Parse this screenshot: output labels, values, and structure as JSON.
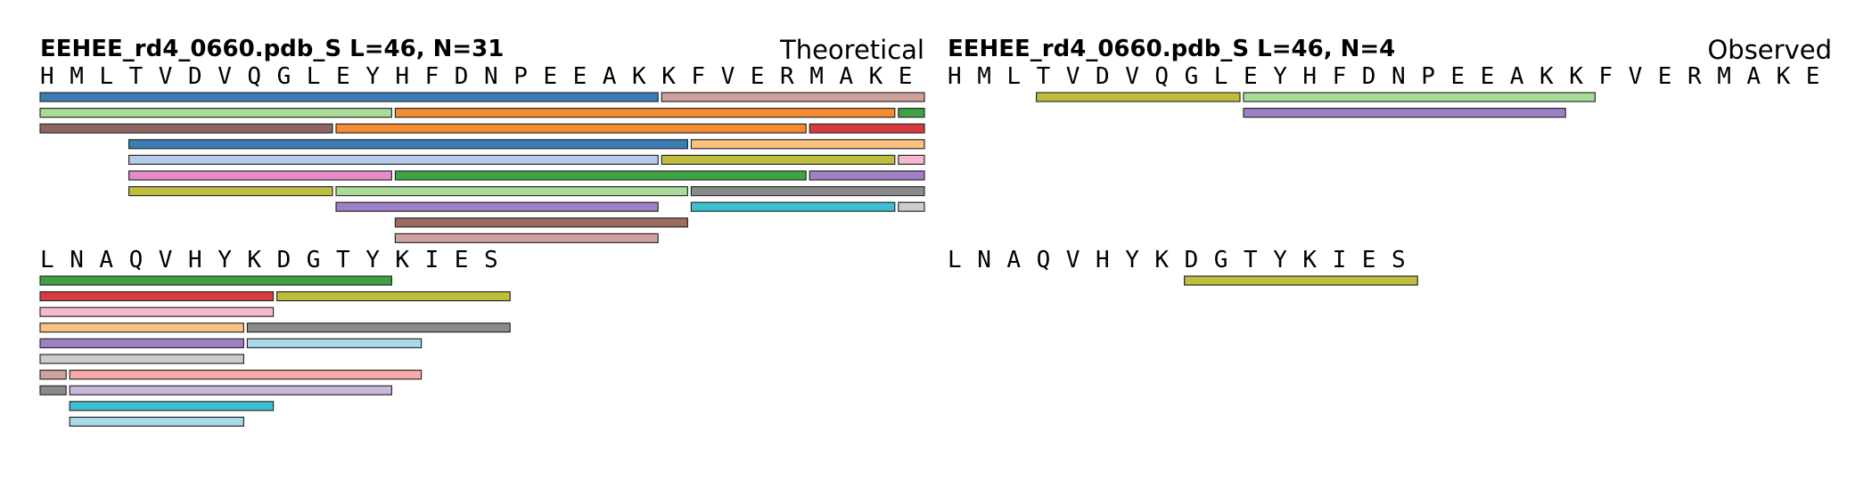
{
  "panels": [
    {
      "id": "theoretical",
      "title": "EEHEE_rd4_0660.pdb_S  L=46, N=31",
      "label": "Theoretical",
      "rows": [
        {
          "sequence": [
            "H",
            "M",
            "L",
            "T",
            "V",
            "D",
            "V",
            "Q",
            "G",
            "L",
            "E",
            "Y",
            "H",
            "F",
            "D",
            "N",
            "P",
            "E",
            "E",
            "A",
            "K",
            "K",
            "F",
            "V",
            "E",
            "R",
            "M",
            "A",
            "K",
            "E"
          ],
          "bar_rows": [
            [
              {
                "start": 1,
                "end": 21,
                "color": "#3a7db6"
              },
              {
                "start": 22,
                "end": 30,
                "color": "#cfa29f"
              }
            ],
            [
              {
                "start": 1,
                "end": 12,
                "color": "#a8dc97"
              },
              {
                "start": 13,
                "end": 29,
                "color": "#f58a30"
              },
              {
                "start": 30,
                "end": 30,
                "color": "#3ea244"
              }
            ],
            [
              {
                "start": 1,
                "end": 10,
                "color": "#8e6661"
              },
              {
                "start": 11,
                "end": 26,
                "color": "#f58a30"
              },
              {
                "start": 27,
                "end": 30,
                "color": "#d83a3d"
              }
            ],
            [
              {
                "start": 4,
                "end": 22,
                "color": "#3a7db6"
              },
              {
                "start": 23,
                "end": 30,
                "color": "#f9c27e"
              }
            ],
            [
              {
                "start": 4,
                "end": 21,
                "color": "#b3cbe8"
              },
              {
                "start": 22,
                "end": 29,
                "color": "#bfbe3c"
              },
              {
                "start": 30,
                "end": 30,
                "color": "#f4b9d0"
              }
            ],
            [
              {
                "start": 4,
                "end": 12,
                "color": "#e48cc8"
              },
              {
                "start": 13,
                "end": 26,
                "color": "#3ea244"
              },
              {
                "start": 27,
                "end": 30,
                "color": "#9e80c4"
              }
            ],
            [
              {
                "start": 4,
                "end": 10,
                "color": "#bfbe3c"
              },
              {
                "start": 11,
                "end": 22,
                "color": "#a8dc97"
              },
              {
                "start": 23,
                "end": 30,
                "color": "#8a8a8a"
              }
            ],
            [
              {
                "start": 11,
                "end": 21,
                "color": "#9e80c4"
              },
              {
                "start": 23,
                "end": 29,
                "color": "#3cbfd0"
              },
              {
                "start": 30,
                "end": 30,
                "color": "#cccccc"
              }
            ],
            [
              {
                "start": 13,
                "end": 22,
                "color": "#9c6b62"
              }
            ],
            [
              {
                "start": 13,
                "end": 21,
                "color": "#cfa29f"
              }
            ]
          ]
        },
        {
          "sequence": [
            "L",
            "N",
            "A",
            "Q",
            "V",
            "H",
            "Y",
            "K",
            "D",
            "G",
            "T",
            "Y",
            "K",
            "I",
            "E",
            "S"
          ],
          "bar_rows": [
            [
              {
                "start": 1,
                "end": 12,
                "color": "#3ea244"
              }
            ],
            [
              {
                "start": 1,
                "end": 8,
                "color": "#d83a3d"
              },
              {
                "start": 9,
                "end": 16,
                "color": "#bfbe3c"
              }
            ],
            [
              {
                "start": 1,
                "end": 8,
                "color": "#f4b9d0"
              }
            ],
            [
              {
                "start": 1,
                "end": 7,
                "color": "#f9c27e"
              },
              {
                "start": 8,
                "end": 16,
                "color": "#8a8a8a"
              }
            ],
            [
              {
                "start": 1,
                "end": 7,
                "color": "#9e80c4"
              },
              {
                "start": 8,
                "end": 13,
                "color": "#a8d9e6"
              }
            ],
            [
              {
                "start": 1,
                "end": 7,
                "color": "#cccccc"
              }
            ],
            [
              {
                "start": 1,
                "end": 1,
                "color": "#cfa29f"
              },
              {
                "start": 2,
                "end": 13,
                "color": "#f9a9a9"
              }
            ],
            [
              {
                "start": 1,
                "end": 1,
                "color": "#8a8a8a"
              },
              {
                "start": 2,
                "end": 12,
                "color": "#c9b8dc"
              }
            ],
            [
              {
                "start": 2,
                "end": 8,
                "color": "#3cbfd0"
              }
            ],
            [
              {
                "start": 2,
                "end": 7,
                "color": "#a8d9e6"
              }
            ]
          ]
        }
      ]
    },
    {
      "id": "observed",
      "title": "EEHEE_rd4_0660.pdb_S  L=46, N=4",
      "label": "Observed",
      "rows": [
        {
          "sequence": [
            "H",
            "M",
            "L",
            "T",
            "V",
            "D",
            "V",
            "Q",
            "G",
            "L",
            "E",
            "Y",
            "H",
            "F",
            "D",
            "N",
            "P",
            "E",
            "E",
            "A",
            "K",
            "K",
            "F",
            "V",
            "E",
            "R",
            "M",
            "A",
            "K",
            "E"
          ],
          "bar_rows": [
            [
              {
                "start": 4,
                "end": 10,
                "color": "#bfbe3c"
              },
              {
                "start": 11,
                "end": 22,
                "color": "#a8dc97"
              }
            ],
            [
              {
                "start": 11,
                "end": 21,
                "color": "#9e80c4"
              }
            ]
          ]
        },
        {
          "sequence": [
            "L",
            "N",
            "A",
            "Q",
            "V",
            "H",
            "Y",
            "K",
            "D",
            "G",
            "T",
            "Y",
            "K",
            "I",
            "E",
            "S"
          ],
          "bar_rows": [
            [
              {
                "start": 9,
                "end": 16,
                "color": "#bfbe3c"
              }
            ]
          ]
        }
      ]
    }
  ]
}
